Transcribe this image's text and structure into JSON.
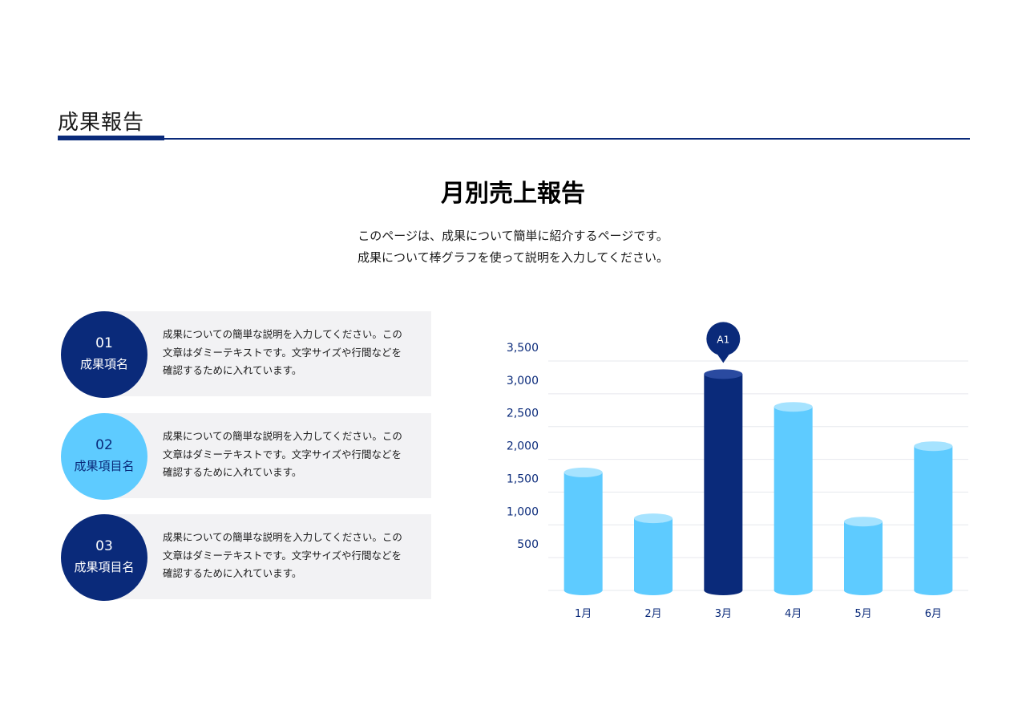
{
  "header": {
    "section_title": "成果報告"
  },
  "main": {
    "title": "月別売上報告",
    "description": [
      "このページは、成果について簡単に紹介するページです。",
      "成果について棒グラフを使って説明を入力してください。"
    ]
  },
  "items": [
    {
      "number": "01",
      "label": "成果項名",
      "text": [
        "成果についての簡単な説明を入力してください。この",
        "文章はダミーテキストです。文字サイズや行間などを",
        "確認するために入れています。"
      ]
    },
    {
      "number": "02",
      "label": "成果項目名",
      "text": [
        "成果についての簡単な説明を入力してください。この",
        "文章はダミーテキストです。文字サイズや行間などを",
        "確認するために入れています。"
      ]
    },
    {
      "number": "03",
      "label": "成果項目名",
      "text": [
        "成果についての簡単な説明を入力してください。この",
        "文章はダミーテキストです。文字サイズや行間などを",
        "確認するために入れています。"
      ]
    }
  ],
  "colors": {
    "dark": "#0a2a7a",
    "light": "#5ecbff",
    "light_top": "#a6e3ff",
    "dark_top": "#2a4aa0",
    "grid": "#e6e8ee"
  },
  "chart_data": {
    "type": "bar",
    "categories": [
      "1月",
      "2月",
      "3月",
      "4月",
      "5月",
      "6月"
    ],
    "values": [
      1800,
      1100,
      3300,
      2800,
      1050,
      2200
    ],
    "highlight_index": 2,
    "marker_label": "A1",
    "yticks": [
      "500",
      "1,000",
      "1,500",
      "2,000",
      "2,500",
      "3,000",
      "3,500"
    ],
    "ylim": [
      0,
      3500
    ],
    "grid": true
  }
}
